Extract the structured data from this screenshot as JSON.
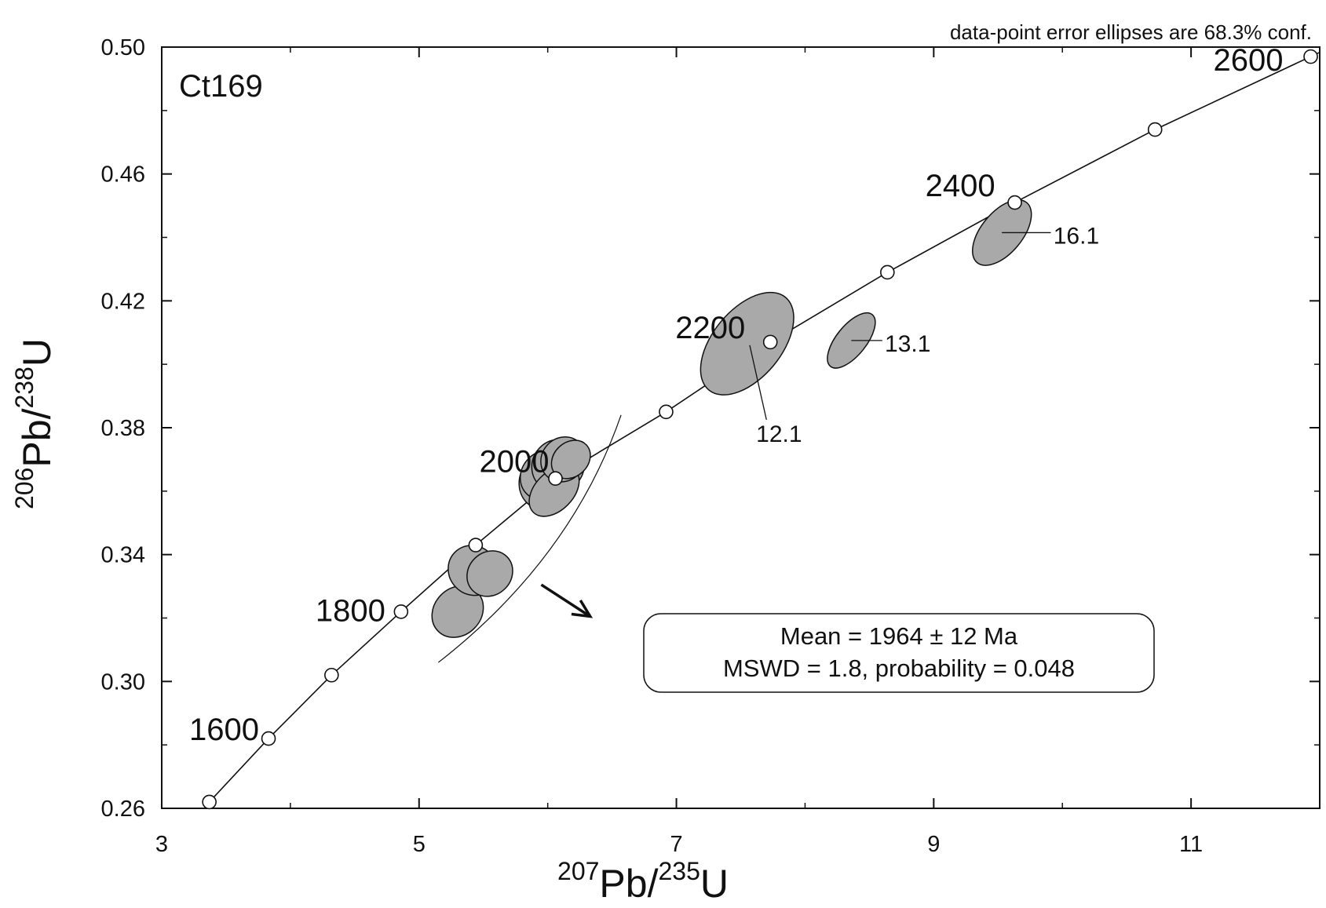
{
  "chart_data": {
    "type": "scatter",
    "subtype": "U-Pb concordia diagram with error ellipses",
    "title": "",
    "sample_label": "Ct169",
    "note": "data-point error ellipses are 68.3% conf.",
    "xlabel": {
      "sup1": "207",
      "main1": "Pb/",
      "sup2": "235",
      "main2": "U"
    },
    "ylabel": {
      "sup1": "206",
      "main1": "Pb/",
      "sup2": "238",
      "main2": "U"
    },
    "xlim": [
      3,
      12
    ],
    "ylim": [
      0.26,
      0.5
    ],
    "xticks": [
      3,
      5,
      7,
      9,
      11
    ],
    "xtick_labels": [
      "3",
      "5",
      "7",
      "9",
      "11"
    ],
    "yticks": [
      0.26,
      0.3,
      0.34,
      0.38,
      0.42,
      0.46,
      0.5
    ],
    "ytick_labels": [
      "0.26",
      "0.30",
      "0.34",
      "0.38",
      "0.42",
      "0.46",
      "0.50"
    ],
    "grid": false,
    "colors": {
      "ellipse_fill": "#a9a9a9",
      "line": "#111111",
      "marker_fill": "#ffffff"
    },
    "concordia": {
      "points": [
        {
          "age": 1600,
          "x": 3.37,
          "y": 0.262
        },
        {
          "age": 1700,
          "x": 3.83,
          "y": 0.282
        },
        {
          "age": 1800,
          "x": 4.32,
          "y": 0.302
        },
        {
          "age": 1900,
          "x": 4.86,
          "y": 0.322
        },
        {
          "age": 2000,
          "x": 5.44,
          "y": 0.343
        },
        {
          "age": 2100,
          "x": 6.06,
          "y": 0.364
        },
        {
          "age": 2200,
          "x": 6.92,
          "y": 0.385
        },
        {
          "age": 2300,
          "x": 7.73,
          "y": 0.407
        },
        {
          "age": 2400,
          "x": 8.64,
          "y": 0.429
        },
        {
          "age": 2500,
          "x": 9.63,
          "y": 0.451
        },
        {
          "age": 2600,
          "x": 10.72,
          "y": 0.474
        },
        {
          "age": 2700,
          "x": 11.93,
          "y": 0.497
        }
      ],
      "labeled_ages": [
        {
          "text": "1600",
          "age": 1700
        },
        {
          "text": "1800",
          "age": 1900
        },
        {
          "text": "2000",
          "age": 2100
        },
        {
          "text": "2200",
          "age": 2300
        },
        {
          "text": "2400",
          "age": 2500
        },
        {
          "text": "2600",
          "age": 2700
        }
      ]
    },
    "ellipses": [
      {
        "id": "12.1",
        "label": "12.1",
        "cx": 7.55,
        "cy": 0.4065,
        "rx": 0.85,
        "ry": 0.008,
        "angle": 1.42
      },
      {
        "id": "13.1",
        "label": "13.1",
        "cx": 8.36,
        "cy": 0.4075,
        "rx": 0.47,
        "ry": 0.0035,
        "angle": 1.44
      },
      {
        "id": "16.1",
        "label": "16.1",
        "cx": 9.53,
        "cy": 0.4415,
        "rx": 0.55,
        "ry": 0.0048,
        "angle": 1.42
      },
      {
        "cx": 5.3,
        "cy": 0.322,
        "rx": 0.39,
        "ry": 0.0055,
        "angle": 1.27
      },
      {
        "cx": 5.42,
        "cy": 0.335,
        "rx": 0.34,
        "ry": 0.006,
        "angle": 1.24
      },
      {
        "cx": 5.55,
        "cy": 0.334,
        "rx": 0.34,
        "ry": 0.005,
        "angle": 1.25
      },
      {
        "cx": 6.0,
        "cy": 0.363,
        "rx": 0.42,
        "ry": 0.0065,
        "angle": 1.4
      },
      {
        "cx": 5.98,
        "cy": 0.365,
        "rx": 0.37,
        "ry": 0.0055,
        "angle": 1.3
      },
      {
        "cx": 6.08,
        "cy": 0.368,
        "rx": 0.38,
        "ry": 0.006,
        "angle": 1.35
      },
      {
        "cx": 6.05,
        "cy": 0.36,
        "rx": 0.42,
        "ry": 0.0045,
        "angle": 1.28
      },
      {
        "cx": 6.12,
        "cy": 0.37,
        "rx": 0.33,
        "ry": 0.005,
        "angle": 1.33
      },
      {
        "cx": 6.18,
        "cy": 0.37,
        "rx": 0.3,
        "ry": 0.004,
        "angle": 1.22
      }
    ],
    "envelope_arc": [
      [
        5.15,
        0.306
      ],
      [
        5.75,
        0.325
      ],
      [
        6.28,
        0.35
      ],
      [
        6.57,
        0.384
      ]
    ],
    "arrow": {
      "from": [
        5.95,
        0.3305
      ],
      "to": [
        6.33,
        0.3205
      ]
    },
    "result_box": {
      "line1": "Mean = 1964 ± 12 Ma",
      "line2": "MSWD = 1.8, probability = 0.048",
      "mean_age_ma": 1964,
      "uncertainty_ma": 12,
      "mswd": 1.8,
      "probability": 0.048
    }
  }
}
